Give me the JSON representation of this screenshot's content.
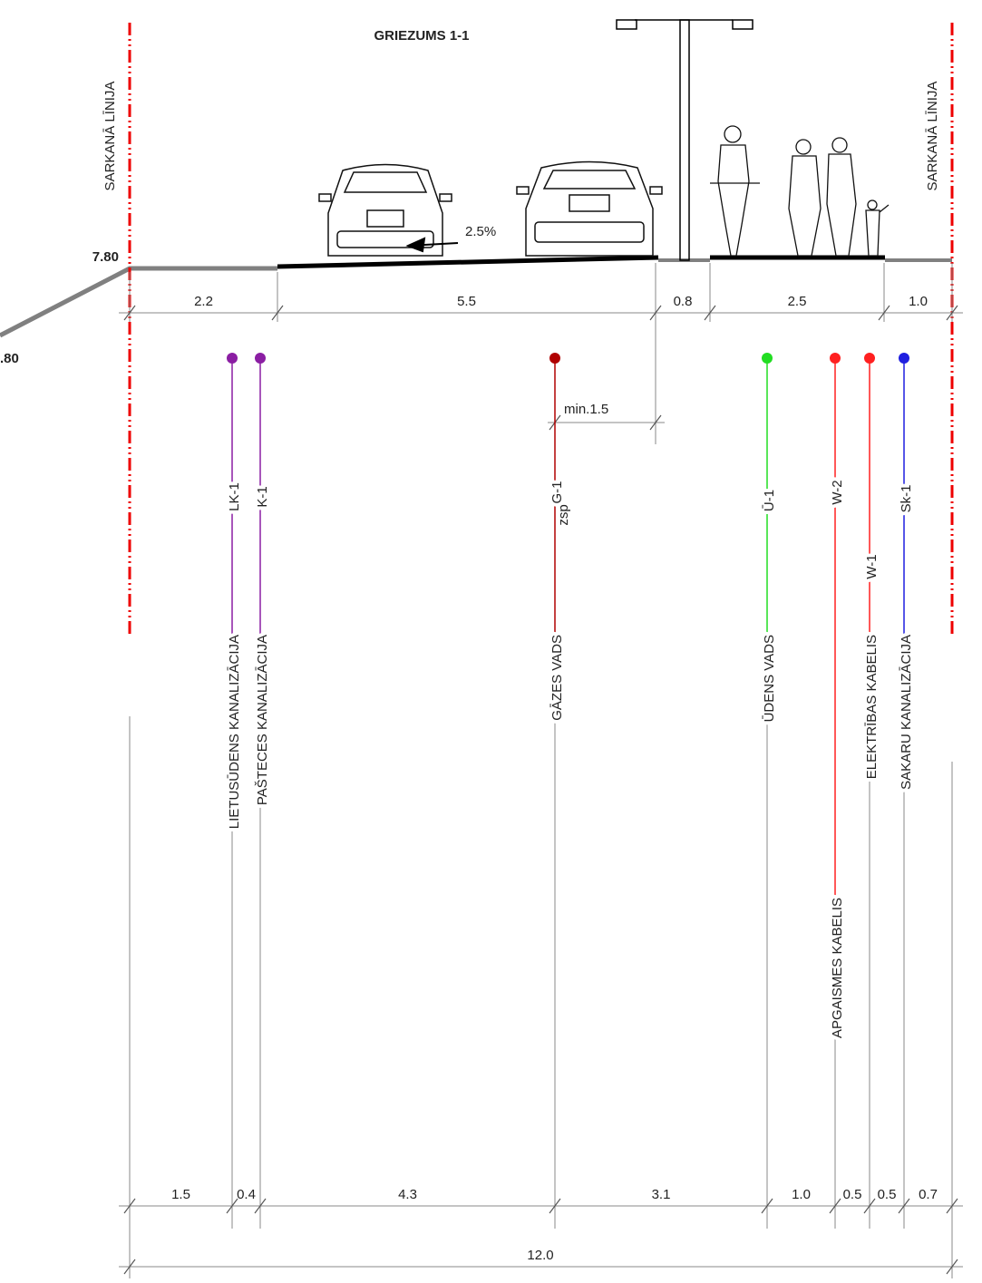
{
  "title": "GRIEZUMS 1-1",
  "red_line_label_left": "SARKANĀ LĪNIJA",
  "red_line_label_right": "SARKANĀ LĪNIJA",
  "elevation_top": "7.80",
  "elevation_left": ".80",
  "slope": "2.5%",
  "top_dimensions": [
    "2.2",
    "5.5",
    "0.8",
    "2.5",
    "1.0"
  ],
  "clearance": "min.1.5",
  "utilities": [
    {
      "code": "LK-1",
      "name": "LIETUSŪDENS KANALIZĀCIJA"
    },
    {
      "code": "K-1",
      "name": "PAŠTECES KANALIZĀCIJA"
    },
    {
      "code": "G-1",
      "subscript": "zsp",
      "name": "GĀZES VADS"
    },
    {
      "code": "Ū-1",
      "name": "ŪDENS VADS"
    },
    {
      "code": "W-2",
      "name": "APGAISMES KABELIS"
    },
    {
      "code": "W-1",
      "name": "ELEKTRĪBAS KABELIS"
    },
    {
      "code": "Sk-1",
      "name": "SAKARU KANALIZĀCIJA"
    }
  ],
  "bottom_dimensions": [
    "1.5",
    "0.4",
    "4.3",
    "3.1",
    "1.0",
    "0.5",
    "0.5",
    "0.7"
  ],
  "total_width": "12.0"
}
